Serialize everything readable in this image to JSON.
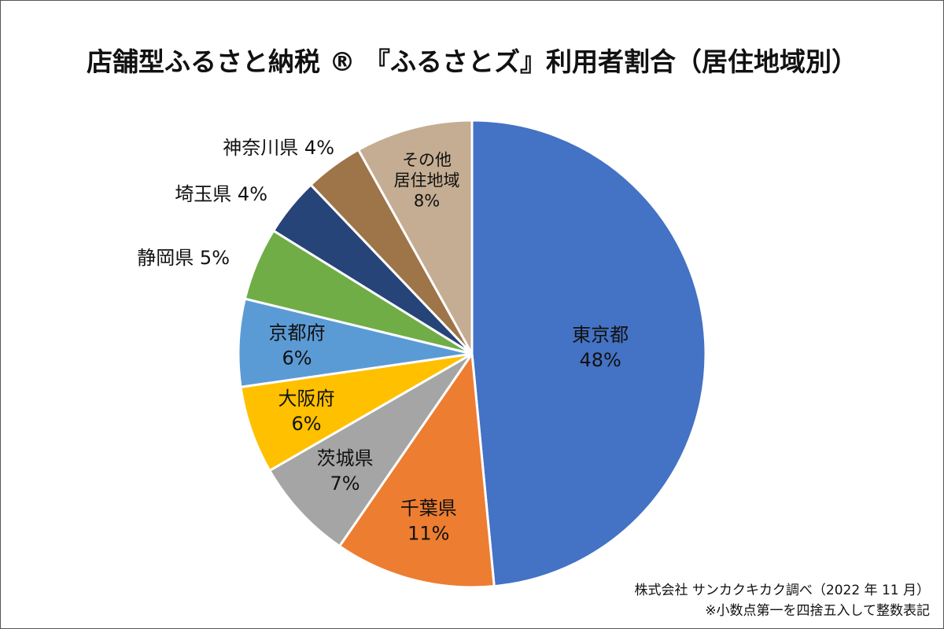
{
  "chart_data": {
    "type": "pie",
    "title": "店舗型ふるさと納税 ® 『ふるさとズ』利用者割合（居住地域別）",
    "start_angle": "12 o'clock",
    "direction": "clockwise",
    "slices": [
      {
        "label": "東京都",
        "value": 48,
        "value_label": "48%",
        "color": "#4472C4"
      },
      {
        "label": "千葉県",
        "value": 11,
        "value_label": "11%",
        "color": "#ED7D31"
      },
      {
        "label": "茨城県",
        "value": 7,
        "value_label": "7%",
        "color": "#A5A5A5"
      },
      {
        "label": "大阪府",
        "value": 6,
        "value_label": "6%",
        "color": "#FFC000"
      },
      {
        "label": "京都府",
        "value": 6,
        "value_label": "6%",
        "color": "#5B9BD5"
      },
      {
        "label": "静岡県",
        "value": 5,
        "value_label": "5%",
        "color": "#70AD47"
      },
      {
        "label": "埼玉県",
        "value": 4,
        "value_label": "4%",
        "color": "#264478"
      },
      {
        "label": "神奈川県",
        "value": 4,
        "value_label": "4%",
        "color": "#9E7449"
      },
      {
        "label": "その他\n居住地域",
        "value": 8,
        "value_label": "8%",
        "color": "#C4AD92"
      }
    ]
  },
  "footnotes": {
    "source": "株式会社 サンカクキカク調べ（2022 年 11 月）",
    "rounding": "※小数点第一を四捨五入して整数表記"
  }
}
